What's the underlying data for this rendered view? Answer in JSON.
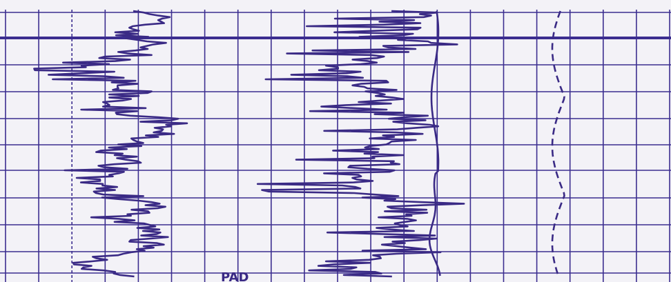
{
  "labels": {
    "pad": "PAD"
  }
}
